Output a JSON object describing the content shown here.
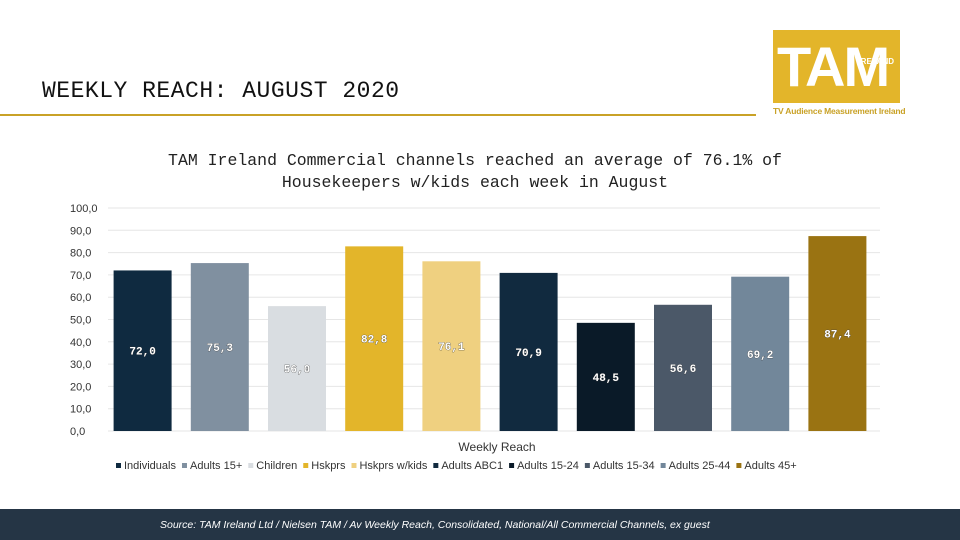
{
  "slide": {
    "title": "WEEKLY REACH: AUGUST 2020"
  },
  "logo": {
    "main": "TAM",
    "sub": "IRELAND",
    "tagline": "TV Audience Measurement Ireland",
    "color": "#e3b52a"
  },
  "chart_data": {
    "type": "bar",
    "title": "TAM Ireland Commercial channels reached an average of 76.1% of Housekeepers w/kids each week in August",
    "xlabel": "Weekly Reach",
    "ylabel": "",
    "ylim": [
      0,
      100
    ],
    "yticks": [
      "100,0",
      "90,0",
      "80,0",
      "70,0",
      "60,0",
      "50,0",
      "40,0",
      "30,0",
      "20,0",
      "10,0",
      "0,0"
    ],
    "grid": true,
    "legend_position": "bottom",
    "series": [
      {
        "name": "Individuals",
        "value": 72.0,
        "label": "72,0",
        "color": "#0f2a40"
      },
      {
        "name": "Adults 15+",
        "value": 75.3,
        "label": "75,3",
        "color": "#8090a0"
      },
      {
        "name": "Children",
        "value": 56.0,
        "label": "56,0",
        "color": "#d9dde1"
      },
      {
        "name": "Hskprs",
        "value": 82.8,
        "label": "82,8",
        "color": "#e3b52a"
      },
      {
        "name": "Hskprs w/kids",
        "value": 76.1,
        "label": "76,1",
        "color": "#efd080"
      },
      {
        "name": "Adults ABC1",
        "value": 70.9,
        "label": "70,9",
        "color": "#112a3f"
      },
      {
        "name": "Adults 15-24",
        "value": 48.5,
        "label": "48,5",
        "color": "#0a1a28"
      },
      {
        "name": "Adults 15-34",
        "value": 56.6,
        "label": "56,6",
        "color": "#4b5868"
      },
      {
        "name": "Adults 25-44",
        "value": 69.2,
        "label": "69,2",
        "color": "#72879a"
      },
      {
        "name": "Adults 45+",
        "value": 87.4,
        "label": "87,4",
        "color": "#9a7312"
      }
    ]
  },
  "footer": {
    "source": "Source: TAM Ireland Ltd / Nielsen TAM / Av Weekly Reach, Consolidated, National/All Commercial Channels, ex guest"
  }
}
